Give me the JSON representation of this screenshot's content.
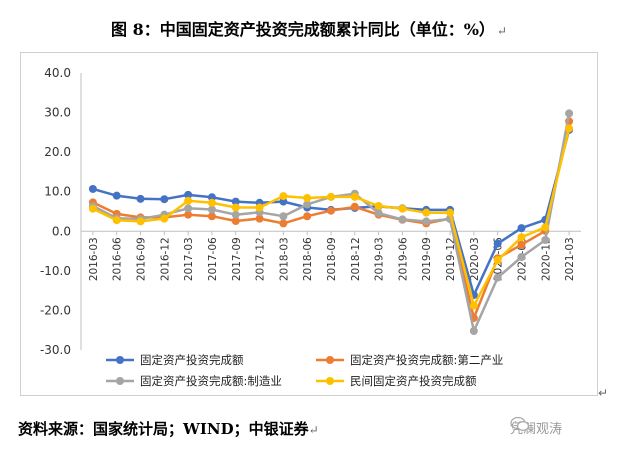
{
  "title": "图 8：中国固定资产投资完成额累计同比（单位：%）",
  "paragraph_mark": "↵",
  "corner_mark": "↵",
  "source": "资料来源：国家统计局；WIND；中银证券",
  "watermark": "凭澜观涛",
  "watermark_icon": "wechat-icon",
  "chart_data": {
    "type": "line",
    "title": "",
    "xlabel": "",
    "ylabel": "",
    "ylim": [
      -30,
      40
    ],
    "yticks": [
      -30,
      -20,
      -10,
      0,
      10,
      20,
      30,
      40
    ],
    "ytick_labels": [
      "-30.0",
      "-20.0",
      "-10.0",
      "0.0",
      "10.0",
      "20.0",
      "30.0",
      "40.0"
    ],
    "grid": false,
    "legend_position": "bottom",
    "x": [
      "2016-03",
      "2016-06",
      "2016-09",
      "2016-12",
      "2017-03",
      "2017-06",
      "2017-09",
      "2017-12",
      "2018-03",
      "2018-06",
      "2018-09",
      "2018-12",
      "2019-03",
      "2019-06",
      "2019-09",
      "2019-12",
      "2020-03",
      "2020-06",
      "2020-09",
      "2020-12",
      "2021-03"
    ],
    "xticks": [
      "2016-03",
      "2016-06",
      "2016-09",
      "2016-12",
      "2017-03",
      "2017-06",
      "2017-09",
      "2017-12",
      "2018-03",
      "2018-06",
      "2018-09",
      "2018-12",
      "2019-03",
      "2019-06",
      "2019-09",
      "2019-12",
      "2020-03",
      "2020-06",
      "2020-09",
      "2020-12",
      "2021-03"
    ],
    "series": [
      {
        "name": "固定资产投资完成额",
        "color": "#4472C4",
        "values": [
          10.7,
          9.0,
          8.2,
          8.1,
          9.2,
          8.6,
          7.5,
          7.2,
          7.5,
          6.0,
          5.4,
          5.9,
          6.3,
          5.8,
          5.4,
          5.4,
          -16.1,
          -3.1,
          0.8,
          2.9,
          25.6
        ]
      },
      {
        "name": "固定资产投资完成额:第二产业",
        "color": "#ED7D31",
        "values": [
          7.3,
          4.4,
          3.5,
          3.5,
          4.2,
          3.8,
          2.6,
          3.2,
          2.0,
          3.8,
          5.2,
          6.2,
          4.2,
          2.9,
          2.0,
          3.2,
          -21.9,
          -6.8,
          -3.4,
          0.1,
          27.8
        ]
      },
      {
        "name": "固定资产投资完成额:制造业",
        "color": "#A5A5A5",
        "values": [
          6.4,
          3.3,
          3.1,
          4.2,
          5.8,
          5.5,
          4.2,
          4.8,
          3.8,
          6.8,
          8.7,
          9.5,
          4.6,
          3.0,
          2.5,
          3.1,
          -25.2,
          -11.7,
          -6.5,
          -2.2,
          29.8
        ]
      },
      {
        "name": "民间固定资产投资完成额",
        "color": "#FFC000",
        "values": [
          5.7,
          2.8,
          2.5,
          3.2,
          7.7,
          7.2,
          6.0,
          6.0,
          8.9,
          8.4,
          8.7,
          8.7,
          6.4,
          5.7,
          4.7,
          4.7,
          -18.8,
          -7.3,
          -1.5,
          1.0,
          26.0
        ]
      }
    ]
  }
}
